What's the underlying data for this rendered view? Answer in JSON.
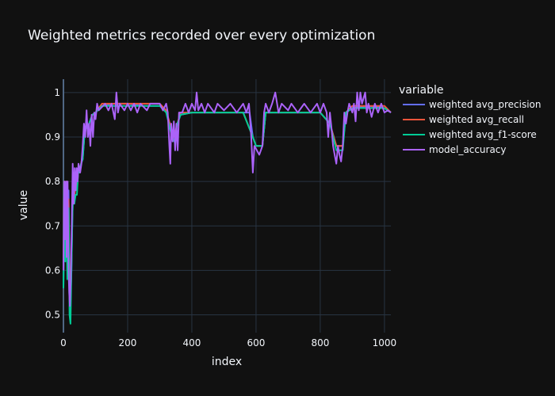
{
  "chart_data": {
    "type": "line",
    "title": "Weighted metrics recorded over every optimization",
    "xlabel": "index",
    "ylabel": "value",
    "xlim": [
      0,
      1020
    ],
    "ylim": [
      0.46,
      1.03
    ],
    "x_ticks": [
      0,
      200,
      400,
      600,
      800,
      1000
    ],
    "y_ticks": [
      0.5,
      0.6,
      0.7,
      0.8,
      0.9,
      1
    ],
    "grid": true,
    "legend_title": "variable",
    "legend_position": "right",
    "series": [
      {
        "name": "weighted avg_precision",
        "color": "#636efa",
        "points": [
          [
            0,
            0.56
          ],
          [
            3,
            0.78
          ],
          [
            6,
            0.66
          ],
          [
            9,
            0.8
          ],
          [
            12,
            0.62
          ],
          [
            16,
            0.78
          ],
          [
            19,
            0.58
          ],
          [
            22,
            0.53
          ],
          [
            25,
            0.6
          ],
          [
            28,
            0.72
          ],
          [
            31,
            0.8
          ],
          [
            34,
            0.76
          ],
          [
            38,
            0.82
          ],
          [
            42,
            0.79
          ],
          [
            46,
            0.83
          ],
          [
            50,
            0.82
          ],
          [
            55,
            0.84
          ],
          [
            60,
            0.85
          ],
          [
            65,
            0.9
          ],
          [
            70,
            0.92
          ],
          [
            80,
            0.93
          ],
          [
            90,
            0.95
          ],
          [
            100,
            0.955
          ],
          [
            120,
            0.97
          ],
          [
            160,
            0.975
          ],
          [
            200,
            0.975
          ],
          [
            250,
            0.97
          ],
          [
            300,
            0.97
          ],
          [
            320,
            0.96
          ],
          [
            335,
            0.92
          ],
          [
            345,
            0.9
          ],
          [
            355,
            0.93
          ],
          [
            365,
            0.95
          ],
          [
            400,
            0.955
          ],
          [
            500,
            0.955
          ],
          [
            560,
            0.955
          ],
          [
            580,
            0.955
          ],
          [
            590,
            0.9
          ],
          [
            600,
            0.88
          ],
          [
            620,
            0.88
          ],
          [
            630,
            0.955
          ],
          [
            700,
            0.955
          ],
          [
            800,
            0.955
          ],
          [
            830,
            0.93
          ],
          [
            850,
            0.88
          ],
          [
            870,
            0.88
          ],
          [
            880,
            0.955
          ],
          [
            900,
            0.965
          ],
          [
            950,
            0.97
          ],
          [
            1000,
            0.965
          ],
          [
            1020,
            0.955
          ]
        ]
      },
      {
        "name": "weighted avg_recall",
        "color": "#ef553b",
        "points": [
          [
            0,
            0.6
          ],
          [
            3,
            0.8
          ],
          [
            6,
            0.64
          ],
          [
            9,
            0.8
          ],
          [
            12,
            0.6
          ],
          [
            16,
            0.76
          ],
          [
            19,
            0.56
          ],
          [
            22,
            0.52
          ],
          [
            25,
            0.62
          ],
          [
            28,
            0.74
          ],
          [
            31,
            0.82
          ],
          [
            34,
            0.76
          ],
          [
            38,
            0.8
          ],
          [
            42,
            0.78
          ],
          [
            46,
            0.82
          ],
          [
            50,
            0.82
          ],
          [
            55,
            0.84
          ],
          [
            60,
            0.86
          ],
          [
            65,
            0.9
          ],
          [
            70,
            0.92
          ],
          [
            80,
            0.93
          ],
          [
            90,
            0.95
          ],
          [
            100,
            0.955
          ],
          [
            120,
            0.975
          ],
          [
            200,
            0.975
          ],
          [
            300,
            0.975
          ],
          [
            320,
            0.96
          ],
          [
            335,
            0.92
          ],
          [
            345,
            0.9
          ],
          [
            355,
            0.93
          ],
          [
            365,
            0.955
          ],
          [
            400,
            0.955
          ],
          [
            560,
            0.955
          ],
          [
            590,
            0.9
          ],
          [
            600,
            0.88
          ],
          [
            620,
            0.88
          ],
          [
            630,
            0.955
          ],
          [
            800,
            0.955
          ],
          [
            830,
            0.93
          ],
          [
            850,
            0.88
          ],
          [
            870,
            0.88
          ],
          [
            880,
            0.955
          ],
          [
            900,
            0.97
          ],
          [
            1000,
            0.97
          ],
          [
            1020,
            0.955
          ]
        ]
      },
      {
        "name": "weighted avg_f1-score",
        "color": "#00cc96",
        "points": [
          [
            0,
            0.56
          ],
          [
            3,
            0.75
          ],
          [
            6,
            0.62
          ],
          [
            9,
            0.78
          ],
          [
            12,
            0.58
          ],
          [
            16,
            0.74
          ],
          [
            19,
            0.5
          ],
          [
            22,
            0.48
          ],
          [
            25,
            0.6
          ],
          [
            28,
            0.72
          ],
          [
            31,
            0.8
          ],
          [
            34,
            0.75
          ],
          [
            38,
            0.77
          ],
          [
            42,
            0.77
          ],
          [
            46,
            0.82
          ],
          [
            50,
            0.82
          ],
          [
            55,
            0.84
          ],
          [
            60,
            0.85
          ],
          [
            65,
            0.9
          ],
          [
            70,
            0.92
          ],
          [
            80,
            0.93
          ],
          [
            90,
            0.95
          ],
          [
            100,
            0.955
          ],
          [
            120,
            0.97
          ],
          [
            200,
            0.97
          ],
          [
            300,
            0.97
          ],
          [
            320,
            0.955
          ],
          [
            335,
            0.91
          ],
          [
            345,
            0.89
          ],
          [
            355,
            0.93
          ],
          [
            365,
            0.95
          ],
          [
            400,
            0.955
          ],
          [
            560,
            0.955
          ],
          [
            590,
            0.9
          ],
          [
            600,
            0.88
          ],
          [
            620,
            0.88
          ],
          [
            630,
            0.955
          ],
          [
            800,
            0.955
          ],
          [
            830,
            0.93
          ],
          [
            850,
            0.87
          ],
          [
            870,
            0.87
          ],
          [
            880,
            0.955
          ],
          [
            900,
            0.965
          ],
          [
            1000,
            0.965
          ],
          [
            1020,
            0.955
          ]
        ]
      },
      {
        "name": "model_accuracy",
        "color": "#ab63fa",
        "points": [
          [
            0,
            0.6
          ],
          [
            3,
            0.8
          ],
          [
            5,
            0.67
          ],
          [
            8,
            0.8
          ],
          [
            10,
            0.63
          ],
          [
            13,
            0.8
          ],
          [
            16,
            0.6
          ],
          [
            18,
            0.55
          ],
          [
            20,
            0.52
          ],
          [
            23,
            0.58
          ],
          [
            26,
            0.7
          ],
          [
            29,
            0.84
          ],
          [
            32,
            0.75
          ],
          [
            35,
            0.83
          ],
          [
            38,
            0.78
          ],
          [
            41,
            0.83
          ],
          [
            44,
            0.8
          ],
          [
            47,
            0.84
          ],
          [
            52,
            0.82
          ],
          [
            56,
            0.84
          ],
          [
            60,
            0.88
          ],
          [
            64,
            0.93
          ],
          [
            68,
            0.9
          ],
          [
            72,
            0.96
          ],
          [
            76,
            0.9
          ],
          [
            80,
            0.93
          ],
          [
            84,
            0.88
          ],
          [
            88,
            0.95
          ],
          [
            92,
            0.9
          ],
          [
            96,
            0.955
          ],
          [
            100,
            0.94
          ],
          [
            105,
            0.975
          ],
          [
            110,
            0.96
          ],
          [
            130,
            0.975
          ],
          [
            140,
            0.96
          ],
          [
            150,
            0.975
          ],
          [
            160,
            0.94
          ],
          [
            165,
            1
          ],
          [
            170,
            0.955
          ],
          [
            175,
            0.975
          ],
          [
            190,
            0.96
          ],
          [
            200,
            0.975
          ],
          [
            210,
            0.96
          ],
          [
            220,
            0.975
          ],
          [
            230,
            0.955
          ],
          [
            240,
            0.975
          ],
          [
            260,
            0.96
          ],
          [
            270,
            0.975
          ],
          [
            300,
            0.975
          ],
          [
            310,
            0.96
          ],
          [
            320,
            0.975
          ],
          [
            325,
            0.955
          ],
          [
            330,
            0.88
          ],
          [
            333,
            0.84
          ],
          [
            336,
            0.93
          ],
          [
            340,
            0.89
          ],
          [
            344,
            0.935
          ],
          [
            348,
            0.87
          ],
          [
            352,
            0.93
          ],
          [
            356,
            0.87
          ],
          [
            360,
            0.955
          ],
          [
            370,
            0.955
          ],
          [
            380,
            0.975
          ],
          [
            390,
            0.955
          ],
          [
            400,
            0.975
          ],
          [
            410,
            0.96
          ],
          [
            415,
            1
          ],
          [
            420,
            0.96
          ],
          [
            430,
            0.975
          ],
          [
            440,
            0.955
          ],
          [
            450,
            0.975
          ],
          [
            470,
            0.955
          ],
          [
            480,
            0.975
          ],
          [
            500,
            0.96
          ],
          [
            520,
            0.975
          ],
          [
            540,
            0.955
          ],
          [
            560,
            0.975
          ],
          [
            570,
            0.955
          ],
          [
            578,
            0.975
          ],
          [
            585,
            0.9
          ],
          [
            590,
            0.82
          ],
          [
            595,
            0.88
          ],
          [
            610,
            0.86
          ],
          [
            620,
            0.88
          ],
          [
            625,
            0.955
          ],
          [
            630,
            0.975
          ],
          [
            640,
            0.955
          ],
          [
            650,
            0.975
          ],
          [
            660,
            1
          ],
          [
            670,
            0.955
          ],
          [
            680,
            0.975
          ],
          [
            700,
            0.96
          ],
          [
            710,
            0.975
          ],
          [
            730,
            0.955
          ],
          [
            750,
            0.975
          ],
          [
            770,
            0.955
          ],
          [
            790,
            0.975
          ],
          [
            800,
            0.955
          ],
          [
            810,
            0.975
          ],
          [
            820,
            0.955
          ],
          [
            825,
            0.9
          ],
          [
            830,
            0.955
          ],
          [
            835,
            0.92
          ],
          [
            840,
            0.88
          ],
          [
            845,
            0.86
          ],
          [
            850,
            0.84
          ],
          [
            855,
            0.88
          ],
          [
            860,
            0.86
          ],
          [
            865,
            0.845
          ],
          [
            870,
            0.88
          ],
          [
            875,
            0.955
          ],
          [
            880,
            0.93
          ],
          [
            885,
            0.955
          ],
          [
            890,
            0.975
          ],
          [
            900,
            0.955
          ],
          [
            905,
            0.975
          ],
          [
            910,
            0.935
          ],
          [
            915,
            1
          ],
          [
            920,
            0.96
          ],
          [
            925,
            1
          ],
          [
            930,
            0.975
          ],
          [
            940,
            1
          ],
          [
            945,
            0.955
          ],
          [
            950,
            0.975
          ],
          [
            960,
            0.945
          ],
          [
            970,
            0.975
          ],
          [
            980,
            0.955
          ],
          [
            990,
            0.975
          ],
          [
            1000,
            0.955
          ],
          [
            1010,
            0.96
          ],
          [
            1020,
            0.955
          ]
        ]
      }
    ]
  }
}
